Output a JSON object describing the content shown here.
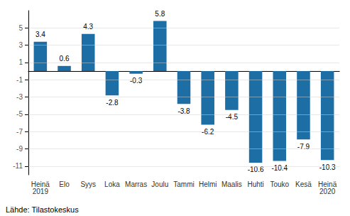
{
  "chart_data": {
    "type": "bar",
    "categories": [
      "Heinä\n2019",
      "Elo",
      "Syys",
      "Loka",
      "Marras",
      "Joulu",
      "Tammi",
      "Helmi",
      "Maalis",
      "Huhti",
      "Touko",
      "Kesä",
      "Heinä\n2020"
    ],
    "values": [
      3.4,
      0.6,
      4.3,
      -2.8,
      -0.3,
      5.8,
      -3.8,
      -6.2,
      -4.5,
      -10.6,
      -10.4,
      -7.9,
      -10.3
    ],
    "color": "#1C6EA4",
    "ylim": [
      -12,
      7
    ],
    "yticks": [
      -11,
      -9,
      -7,
      -5,
      -3,
      -1,
      1,
      3,
      5
    ],
    "grid": true,
    "data_labels": true,
    "annotations": [
      "Lähde: Tilastokeskus"
    ]
  }
}
